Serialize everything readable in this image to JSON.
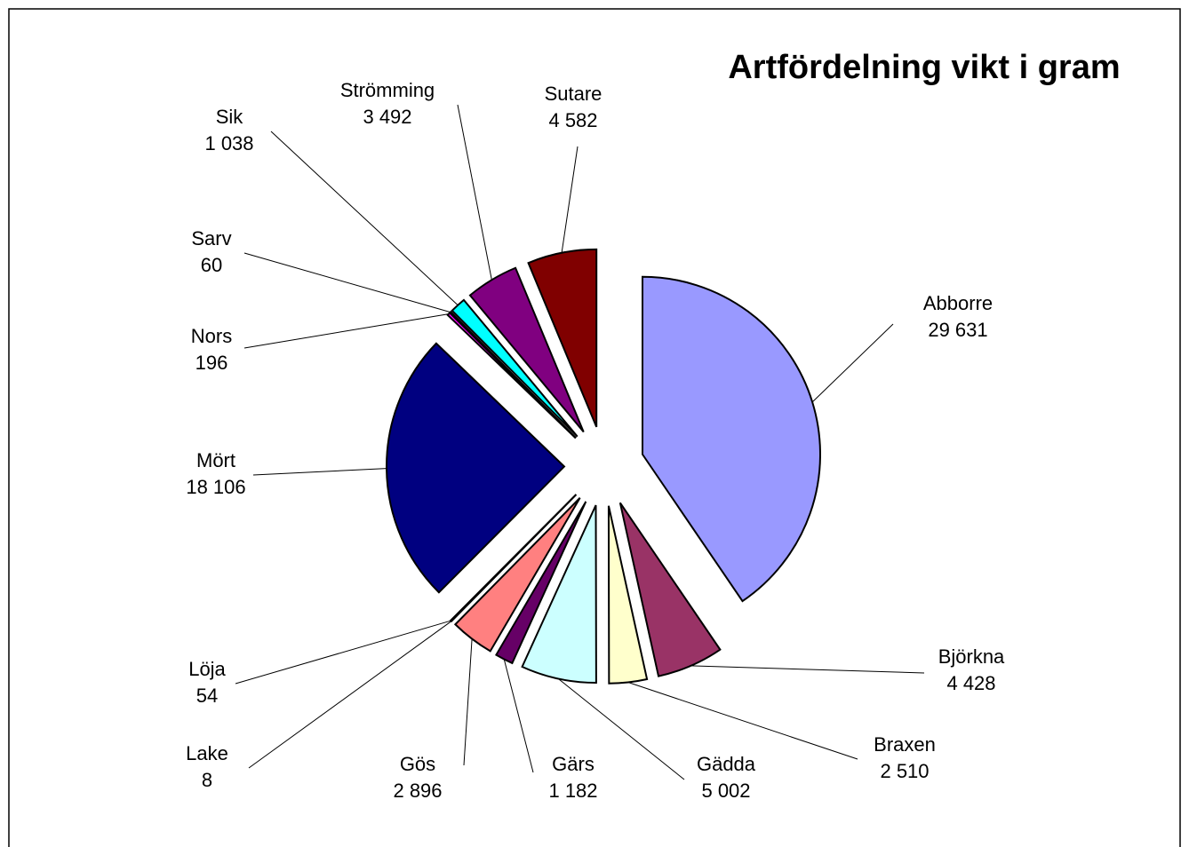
{
  "chart_data": {
    "type": "pie",
    "title": "Artfördelning vikt i gram",
    "categories": [
      "Abborre",
      "Björkna",
      "Braxen",
      "Gädda",
      "Gärs",
      "Gös",
      "Lake",
      "Löja",
      "Mört",
      "Nors",
      "Sarv",
      "Sik",
      "Strömming",
      "Sutare"
    ],
    "values": [
      29631,
      4428,
      2510,
      5002,
      1182,
      2896,
      8,
      54,
      18106,
      196,
      60,
      1038,
      3492,
      4582
    ],
    "value_labels": [
      "29 631",
      "4 428",
      "2 510",
      "5 002",
      "1 182",
      "2 896",
      "8",
      "54",
      "18 106",
      "196",
      "60",
      "1 038",
      "3 492",
      "4 582"
    ],
    "colors": [
      "#9999ff",
      "#993366",
      "#ffffcc",
      "#ccffff",
      "#660066",
      "#ff8080",
      "#0066cc",
      "#ccccff",
      "#000080",
      "#ff00ff",
      "#ffff00",
      "#00ffff",
      "#800080",
      "#800000"
    ]
  }
}
